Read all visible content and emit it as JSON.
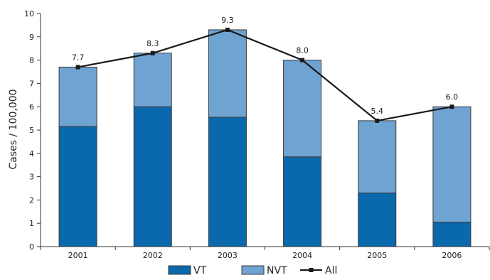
{
  "chart_data": {
    "type": "bar",
    "stacked": true,
    "categories": [
      "2001",
      "2002",
      "2003",
      "2004",
      "2005",
      "2006"
    ],
    "series": [
      {
        "name": "VT",
        "values": [
          5.15,
          6.0,
          5.55,
          3.85,
          2.3,
          1.05
        ],
        "color": "#0a68ac"
      },
      {
        "name": "NVT",
        "values": [
          2.55,
          2.3,
          3.75,
          4.15,
          3.1,
          4.95
        ],
        "color": "#6fa3d1"
      }
    ],
    "line_series": {
      "name": "All",
      "values": [
        7.7,
        8.3,
        9.3,
        8.0,
        5.4,
        6.0
      ],
      "labels": [
        "7.7",
        "8.3",
        "9.3",
        "8.0",
        "5.4",
        "6.0"
      ],
      "color": "#1a1a1a"
    },
    "ylabel": "Cases / 100,000",
    "xlabel": "",
    "ylim": [
      0,
      10
    ],
    "yticks": [
      "0",
      "1",
      "2",
      "3",
      "4",
      "5",
      "6",
      "7",
      "8",
      "9",
      "10"
    ],
    "grid": false,
    "legend_position": "bottom"
  }
}
